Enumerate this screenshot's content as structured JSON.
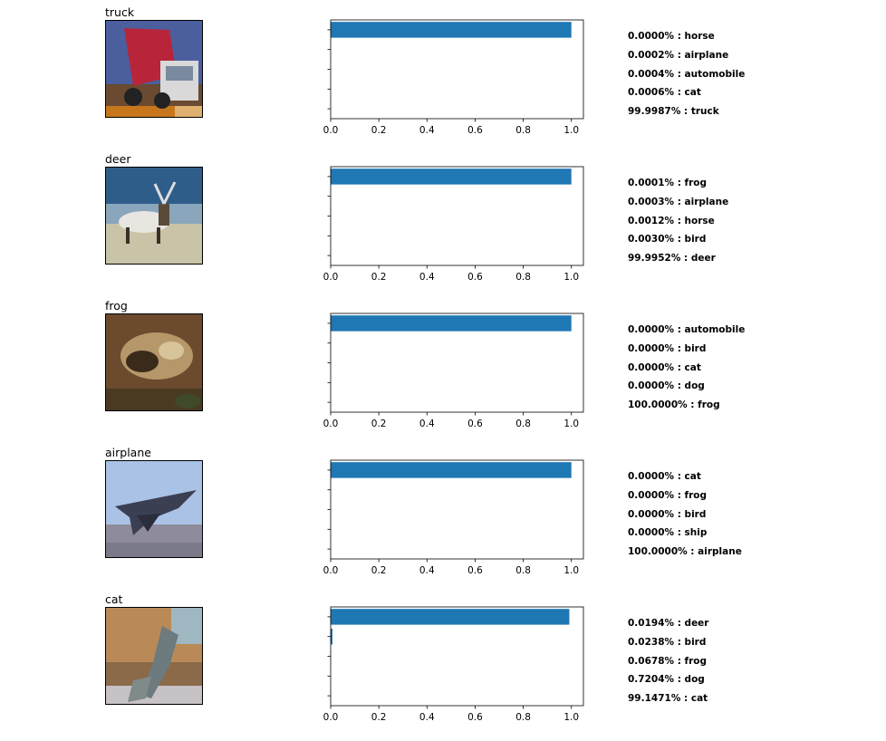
{
  "colors": {
    "bar": "#1f77b4",
    "axis": "#000000"
  },
  "chart_data": [
    {
      "type": "bar",
      "orientation": "horizontal",
      "image_title": "truck",
      "image_icon": "truck-photo",
      "categories": [
        "horse",
        "airplane",
        "automobile",
        "cat",
        "truck"
      ],
      "values": [
        0.0,
        2e-06,
        4e-06,
        6e-06,
        0.999987
      ],
      "xlim": [
        0,
        1.05
      ],
      "xticks": [
        "0.0",
        "0.2",
        "0.4",
        "0.6",
        "0.8",
        "1.0"
      ],
      "predictions": [
        "0.0000% : horse",
        "0.0002% : airplane",
        "0.0004% : automobile",
        "0.0006% : cat",
        "99.9987% : truck"
      ]
    },
    {
      "type": "bar",
      "orientation": "horizontal",
      "image_title": "deer",
      "image_icon": "deer-photo",
      "categories": [
        "frog",
        "airplane",
        "horse",
        "bird",
        "deer"
      ],
      "values": [
        1e-06,
        3e-06,
        1.2e-05,
        3e-05,
        0.999952
      ],
      "xlim": [
        0,
        1.05
      ],
      "xticks": [
        "0.0",
        "0.2",
        "0.4",
        "0.6",
        "0.8",
        "1.0"
      ],
      "predictions": [
        "0.0001% : frog",
        "0.0003% : airplane",
        "0.0012% : horse",
        "0.0030% : bird",
        "99.9952% : deer"
      ]
    },
    {
      "type": "bar",
      "orientation": "horizontal",
      "image_title": "frog",
      "image_icon": "frog-photo",
      "categories": [
        "automobile",
        "bird",
        "cat",
        "dog",
        "frog"
      ],
      "values": [
        0.0,
        0.0,
        0.0,
        0.0,
        1.0
      ],
      "xlim": [
        0,
        1.05
      ],
      "xticks": [
        "0.0",
        "0.2",
        "0.4",
        "0.6",
        "0.8",
        "1.0"
      ],
      "predictions": [
        "0.0000% : automobile",
        "0.0000% : bird",
        "0.0000% : cat",
        "0.0000% : dog",
        "100.0000% : frog"
      ]
    },
    {
      "type": "bar",
      "orientation": "horizontal",
      "image_title": "airplane",
      "image_icon": "airplane-photo",
      "categories": [
        "cat",
        "frog",
        "bird",
        "ship",
        "airplane"
      ],
      "values": [
        0.0,
        0.0,
        0.0,
        0.0,
        1.0
      ],
      "xlim": [
        0,
        1.05
      ],
      "xticks": [
        "0.0",
        "0.2",
        "0.4",
        "0.6",
        "0.8",
        "1.0"
      ],
      "predictions": [
        "0.0000% : cat",
        "0.0000% : frog",
        "0.0000% : bird",
        "0.0000% : ship",
        "100.0000% : airplane"
      ]
    },
    {
      "type": "bar",
      "orientation": "horizontal",
      "image_title": "cat",
      "image_icon": "cat-photo",
      "categories": [
        "deer",
        "bird",
        "frog",
        "dog",
        "cat"
      ],
      "values": [
        0.000194,
        0.000238,
        0.000678,
        0.007204,
        0.991471
      ],
      "xlim": [
        0,
        1.05
      ],
      "xticks": [
        "0.0",
        "0.2",
        "0.4",
        "0.6",
        "0.8",
        "1.0"
      ],
      "predictions": [
        "0.0194% : deer",
        "0.0238% : bird",
        "0.0678% : frog",
        "0.7204% : dog",
        "99.1471% : cat"
      ]
    }
  ]
}
